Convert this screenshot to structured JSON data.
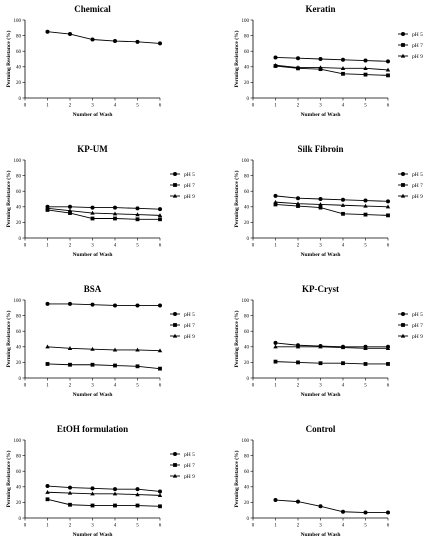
{
  "chart_data": [
    {
      "type": "line",
      "title": "Chemical",
      "xlabel": "Number of Wash",
      "ylabel": "Perming Resistance (%)",
      "x": [
        1,
        2,
        3,
        4,
        5,
        6
      ],
      "xlim": [
        0,
        6
      ],
      "ylim": [
        0,
        100
      ],
      "series": [
        {
          "values": [
            85,
            82,
            75,
            73,
            72,
            70
          ],
          "marker": "circle"
        }
      ]
    },
    {
      "type": "line",
      "title": "Keratin",
      "xlabel": "Number of Wash",
      "ylabel": "Perming Resistance (%)",
      "x": [
        1,
        2,
        3,
        4,
        5,
        6
      ],
      "xlim": [
        0,
        6
      ],
      "ylim": [
        0,
        100
      ],
      "legend": "right",
      "series": [
        {
          "name": "pH 5",
          "values": [
            52,
            51,
            50,
            49,
            48,
            47
          ],
          "marker": "circle"
        },
        {
          "name": "pH 7",
          "values": [
            41,
            38,
            37,
            31,
            30,
            29
          ],
          "marker": "square"
        },
        {
          "name": "pH 9",
          "values": [
            42,
            39,
            39,
            38,
            38,
            36
          ],
          "marker": "triangle"
        }
      ]
    },
    {
      "type": "line",
      "title": "KP-UM",
      "xlabel": "Number of Wash",
      "ylabel": "Perming Resistance (%)",
      "x": [
        1,
        2,
        3,
        4,
        5,
        6
      ],
      "xlim": [
        0,
        6
      ],
      "ylim": [
        0,
        100
      ],
      "legend": "right",
      "series": [
        {
          "name": "pH 5",
          "values": [
            40,
            40,
            39,
            39,
            38,
            37
          ],
          "marker": "circle"
        },
        {
          "name": "pH 7",
          "values": [
            36,
            32,
            25,
            25,
            24,
            24
          ],
          "marker": "square"
        },
        {
          "name": "pH 9",
          "values": [
            38,
            35,
            32,
            31,
            30,
            29
          ],
          "marker": "triangle"
        }
      ]
    },
    {
      "type": "line",
      "title": "Silk Fibroin",
      "xlabel": "Number of Wash",
      "ylabel": "Perming Resistance (%)",
      "x": [
        1,
        2,
        3,
        4,
        5,
        6
      ],
      "xlim": [
        0,
        6
      ],
      "ylim": [
        0,
        100
      ],
      "legend": "right",
      "series": [
        {
          "name": "pH 5",
          "values": [
            54,
            51,
            50,
            49,
            48,
            47
          ],
          "marker": "circle"
        },
        {
          "name": "pH 7",
          "values": [
            43,
            41,
            39,
            31,
            30,
            29
          ],
          "marker": "square"
        },
        {
          "name": "pH 9",
          "values": [
            46,
            44,
            43,
            42,
            41,
            40
          ],
          "marker": "triangle"
        }
      ]
    },
    {
      "type": "line",
      "title": "BSA",
      "xlabel": "Number of Wash",
      "ylabel": "Perming Resistance (%)",
      "x": [
        1,
        2,
        3,
        4,
        5,
        6
      ],
      "xlim": [
        0,
        6
      ],
      "ylim": [
        0,
        100
      ],
      "legend": "right",
      "series": [
        {
          "name": "pH 5",
          "values": [
            95,
            95,
            94,
            93,
            93,
            93
          ],
          "marker": "circle"
        },
        {
          "name": "pH 7",
          "values": [
            18,
            17,
            17,
            16,
            15,
            12
          ],
          "marker": "square"
        },
        {
          "name": "pH 9",
          "values": [
            40,
            38,
            37,
            36,
            36,
            35
          ],
          "marker": "triangle"
        }
      ]
    },
    {
      "type": "line",
      "title": "KP-Cryst",
      "xlabel": "Number of Wash",
      "ylabel": "Perming Resistance (%)",
      "x": [
        1,
        2,
        3,
        4,
        5,
        6
      ],
      "xlim": [
        0,
        6
      ],
      "ylim": [
        0,
        100
      ],
      "legend": "right",
      "series": [
        {
          "name": "pH 5",
          "values": [
            45,
            42,
            41,
            40,
            40,
            40
          ],
          "marker": "circle"
        },
        {
          "name": "pH 7",
          "values": [
            21,
            20,
            19,
            19,
            18,
            18
          ],
          "marker": "square"
        },
        {
          "name": "pH 9",
          "values": [
            40,
            40,
            40,
            39,
            38,
            38
          ],
          "marker": "triangle"
        }
      ]
    },
    {
      "type": "line",
      "title": "EtOH formulation",
      "xlabel": "Number of Wash",
      "ylabel": "Perming Resistance (%)",
      "x": [
        1,
        2,
        3,
        4,
        5,
        6
      ],
      "xlim": [
        0,
        6
      ],
      "ylim": [
        0,
        100
      ],
      "legend": "right",
      "series": [
        {
          "name": "pH 5",
          "values": [
            41,
            39,
            38,
            37,
            37,
            34
          ],
          "marker": "circle"
        },
        {
          "name": "pH 7",
          "values": [
            24,
            17,
            16,
            16,
            16,
            15
          ],
          "marker": "square"
        },
        {
          "name": "pH 9",
          "values": [
            33,
            32,
            31,
            31,
            30,
            29
          ],
          "marker": "triangle"
        }
      ]
    },
    {
      "type": "line",
      "title": "Control",
      "xlabel": "Number of Wash",
      "ylabel": "Perming Resistance (%)",
      "x": [
        1,
        2,
        3,
        4,
        5,
        6
      ],
      "xlim": [
        0,
        6
      ],
      "ylim": [
        0,
        100
      ],
      "series": [
        {
          "values": [
            23,
            21,
            15,
            8,
            7,
            7
          ],
          "marker": "circle"
        }
      ]
    }
  ]
}
